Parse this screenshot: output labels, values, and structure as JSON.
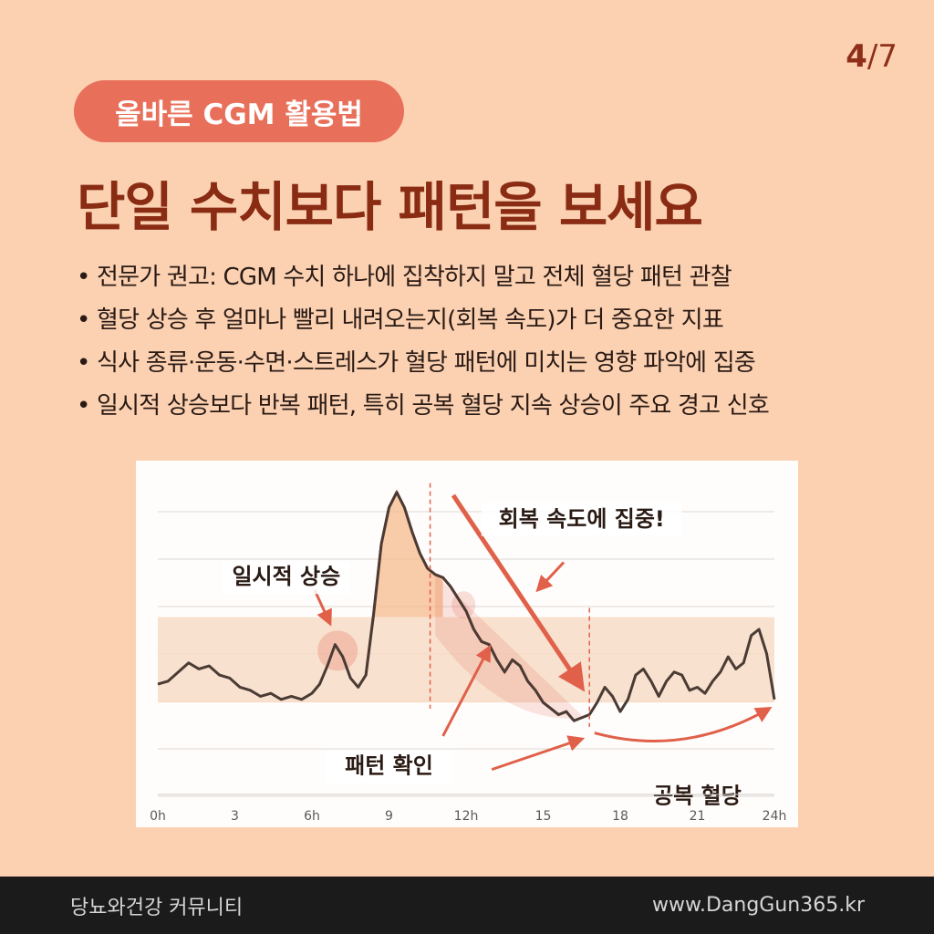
{
  "page": {
    "current": "4",
    "total": "7"
  },
  "topic": "올바른 CGM 활용법",
  "headline": "단일 수치보다 패턴을 보세요",
  "bullet_marker": "•",
  "bullets": [
    "전문가 권고: CGM 수치 하나에 집착하지 말고 전체 혈당 패턴 관찰",
    "혈당 상승 후 얼마나 빨리 내려오는지(회복 속도)가 더 중요한 지표",
    "식사 종류·운동·수면·스트레스가 혈당 패턴에 미치는 영향 파악에 집중",
    "일시적 상승보다 반복 패턴, 특히 공복 혈당 지속 상승이 주요 경고 신호"
  ],
  "footer": {
    "community": "당뇨와건강 커뮤니티",
    "website": "www.DangGun365.kr"
  },
  "colors": {
    "line": "#4a3b35",
    "accent": "#e0604a",
    "target_band": "#f7dcc6",
    "spike_fill": "#f5b98d",
    "headline": "#8a2c14",
    "background": "#fbd1b2"
  },
  "chart_data": {
    "type": "line",
    "title": "",
    "xlabel": "",
    "ylabel": "",
    "x_tick_labels": [
      "0h",
      "3",
      "6h",
      "9",
      "12h",
      "15",
      "18",
      "21",
      "24h"
    ],
    "xlim": [
      0,
      24
    ],
    "ylim": [
      0,
      100
    ],
    "grid": true,
    "target_band": [
      26,
      54
    ],
    "series": [
      {
        "x": [
          0,
          0.4,
          0.8,
          1.2,
          1.6,
          2.0,
          2.4,
          2.8,
          3.2,
          3.6,
          4.0,
          4.4,
          4.8,
          5.2,
          5.6,
          6.0,
          6.3,
          6.6,
          6.9,
          7.2,
          7.5,
          7.8,
          8.1,
          8.4,
          8.7,
          9.0,
          9.3,
          9.6,
          9.9,
          10.2,
          10.5,
          10.8,
          11.1,
          11.4,
          11.7,
          12.0,
          12.3,
          12.6,
          12.9,
          13.2,
          13.5,
          13.8,
          14.1,
          14.4,
          14.7,
          15.0,
          15.3,
          15.6,
          15.9,
          16.2,
          16.5,
          16.8,
          17.1,
          17.4,
          17.7,
          18.0,
          18.3,
          18.6,
          18.9,
          19.2,
          19.5,
          19.8,
          20.1,
          20.4,
          20.7,
          21.0,
          21.3,
          21.6,
          21.9,
          22.2,
          22.5,
          22.8,
          23.1,
          23.4,
          23.7,
          24.0
        ],
        "y": [
          32,
          33,
          36,
          39,
          37,
          38,
          35,
          34,
          31,
          30,
          28,
          29,
          27,
          28,
          27,
          29,
          32,
          38,
          45,
          41,
          34,
          31,
          35,
          55,
          78,
          90,
          95,
          90,
          82,
          75,
          70,
          68,
          67,
          64,
          60,
          56,
          50,
          46,
          45,
          40,
          36,
          40,
          38,
          33,
          30,
          26,
          24,
          22,
          23,
          20,
          21,
          22,
          26,
          31,
          28,
          23,
          27,
          35,
          37,
          33,
          28,
          33,
          36,
          35,
          30,
          31,
          29,
          33,
          36,
          41,
          37,
          39,
          48,
          50,
          42,
          27
        ]
      }
    ],
    "annotations": [
      "일시적 상승",
      "회복 속도에 집중!",
      "패턴 확인",
      "공복 혈당"
    ]
  }
}
